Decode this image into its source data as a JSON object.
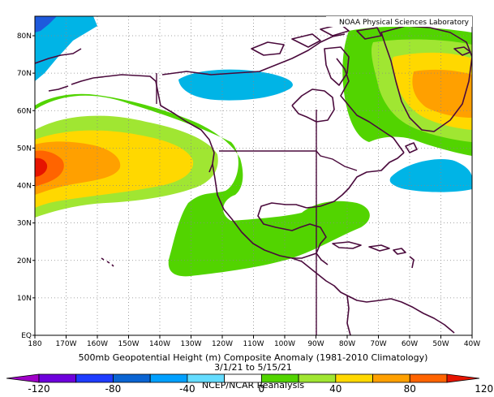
{
  "credit": "NOAA Physical Sciences Laboratory",
  "caption": {
    "line1": "500mb Geopotential Height (m) Composite Anomaly (1981-2010 Climatology)",
    "line2": "3/1/21  to 5/15/21",
    "line3": "NCEP/NCAR Reanalysis"
  },
  "axes": {
    "lon_ticks": [
      "180",
      "170W",
      "160W",
      "150W",
      "140W",
      "130W",
      "120W",
      "110W",
      "100W",
      "90W",
      "80W",
      "70W",
      "60W",
      "50W",
      "40W"
    ],
    "lat_ticks": [
      "EQ",
      "10N",
      "20N",
      "30N",
      "40N",
      "50N",
      "60N",
      "70N",
      "80N"
    ]
  },
  "colorbar": {
    "levels": [
      -120,
      -100,
      -80,
      -60,
      -40,
      -20,
      0,
      20,
      40,
      60,
      80,
      100,
      120
    ],
    "colors": [
      "#a000c8",
      "#6e00dc",
      "#1e3cff",
      "#0a64d2",
      "#00a0ff",
      "#64dcff",
      "#ffffff",
      "#52d400",
      "#a0e632",
      "#ffd800",
      "#ffa000",
      "#ff6400",
      "#e61400"
    ],
    "labels": [
      "-120",
      "-80",
      "-40",
      "0",
      "40",
      "80",
      "120"
    ]
  }
}
